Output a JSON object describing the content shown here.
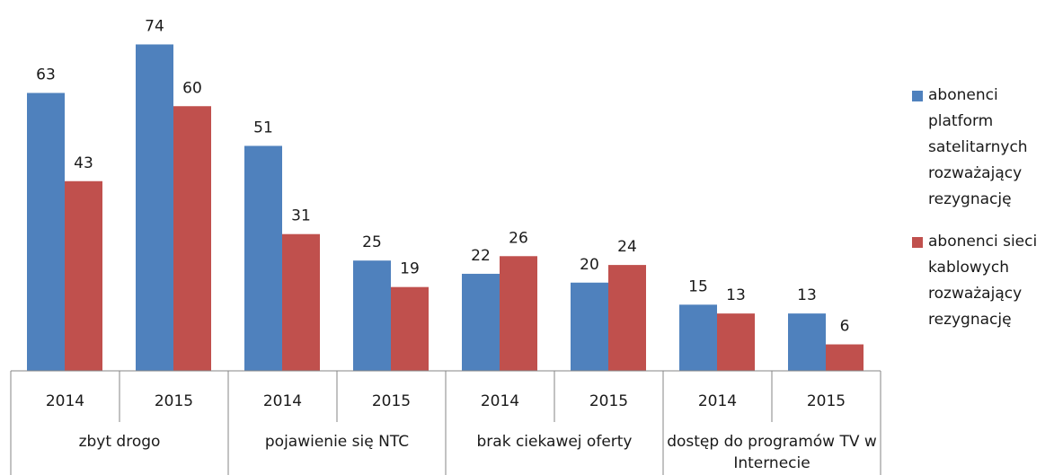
{
  "chart_data": {
    "type": "bar",
    "categories": [
      "2014",
      "2015",
      "2014",
      "2015",
      "2014",
      "2015",
      "2014",
      "2015"
    ],
    "groups": [
      "zbyt drogo",
      "pojawienie się NTC",
      "brak ciekawej oferty",
      "dostęp do programów TV w Internecie"
    ],
    "series": [
      {
        "name": "abonenci platform satelitarnych rozważający rezygnację",
        "color": "#4f81bd",
        "values": [
          63,
          74,
          51,
          25,
          22,
          20,
          15,
          13
        ]
      },
      {
        "name": "abonenci sieci kablowych rozważający rezygnację",
        "color": "#c0504d",
        "values": [
          43,
          60,
          31,
          19,
          26,
          24,
          13,
          6
        ]
      }
    ],
    "ylim": [
      0,
      80
    ],
    "legend": "right"
  }
}
